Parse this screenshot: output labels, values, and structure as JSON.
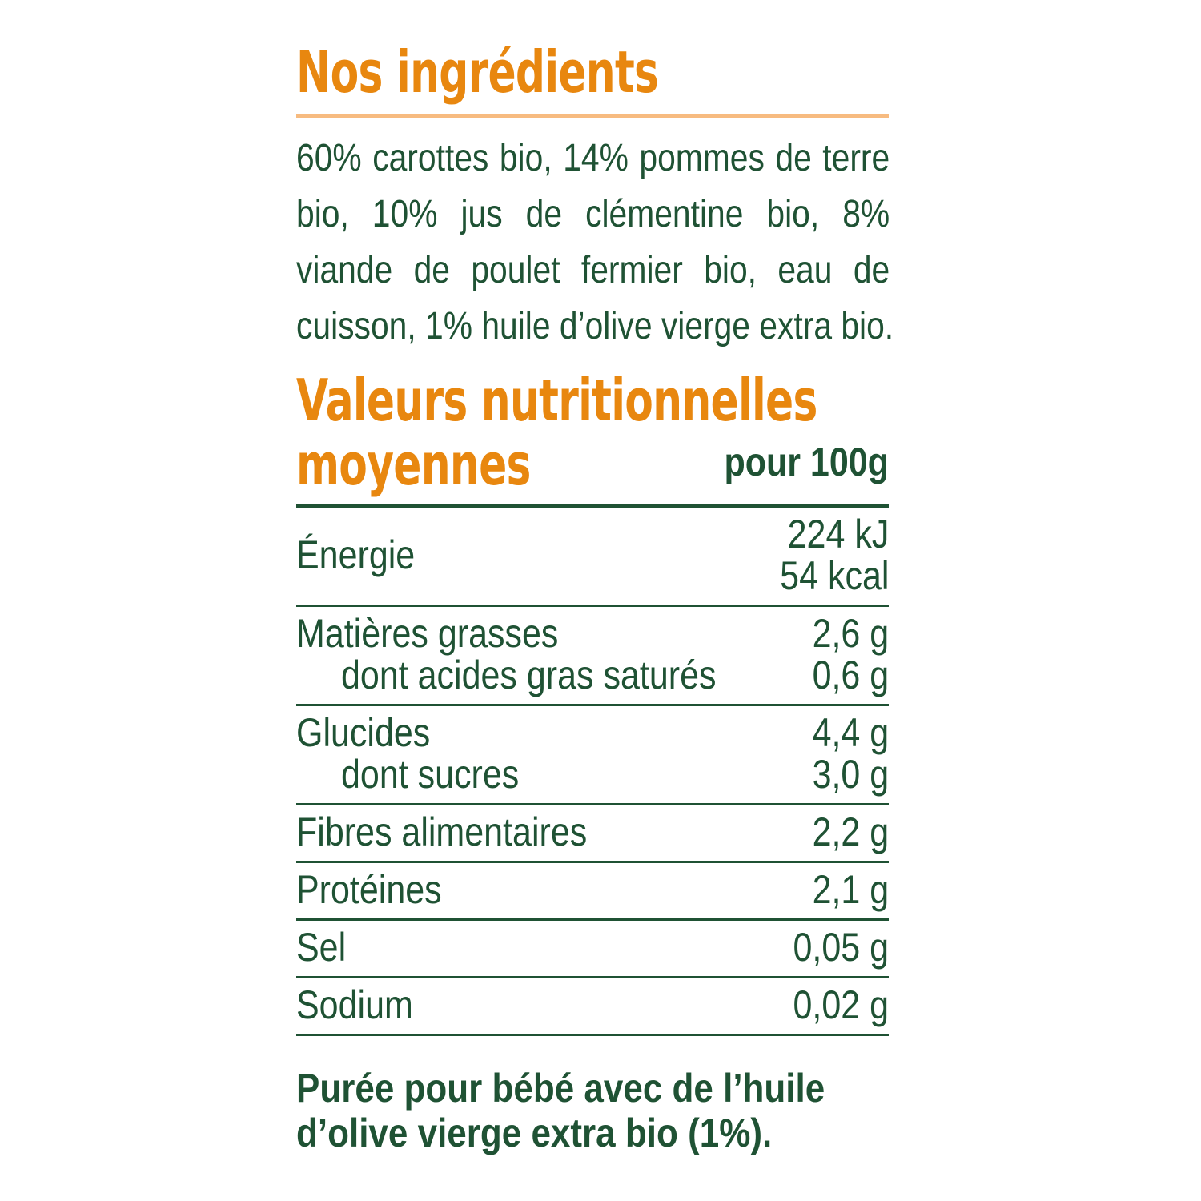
{
  "ingredients": {
    "title": "Nos ingrédients",
    "lines": [
      "60% carottes bio, 14% pommes de terre",
      "bio, 10% jus de clémentine bio, 8%",
      "viande de poulet fermier bio, eau de",
      "cuisson, 1% huile d’olive vierge extra bio."
    ]
  },
  "nutrition": {
    "title_lines": [
      "Valeurs nutritionnelles",
      "moyennes"
    ],
    "per": "pour 100g",
    "groups": [
      {
        "rows": [
          {
            "label": "Énergie",
            "values": [
              "224 kJ",
              "54 kcal"
            ]
          }
        ]
      },
      {
        "rows": [
          {
            "label": "Matières grasses",
            "values": [
              "2,6 g"
            ]
          },
          {
            "label": "dont acides gras saturés",
            "values": [
              "0,6 g"
            ]
          }
        ]
      },
      {
        "rows": [
          {
            "label": "Glucides",
            "values": [
              "4,4 g"
            ]
          },
          {
            "label": "dont sucres",
            "values": [
              "3,0 g"
            ]
          }
        ]
      },
      {
        "rows": [
          {
            "label": "Fibres alimentaires",
            "values": [
              "2,2 g"
            ]
          }
        ]
      },
      {
        "rows": [
          {
            "label": "Protéines",
            "values": [
              "2,1 g"
            ]
          }
        ]
      },
      {
        "rows": [
          {
            "label": "Sel",
            "values": [
              "0,05 g"
            ]
          }
        ]
      },
      {
        "rows": [
          {
            "label": "Sodium",
            "values": [
              "0,02 g"
            ]
          }
        ]
      }
    ]
  },
  "footer": {
    "lines": [
      "Purée pour bébé avec de l’huile",
      "d’olive vierge extra bio (1%)."
    ]
  }
}
